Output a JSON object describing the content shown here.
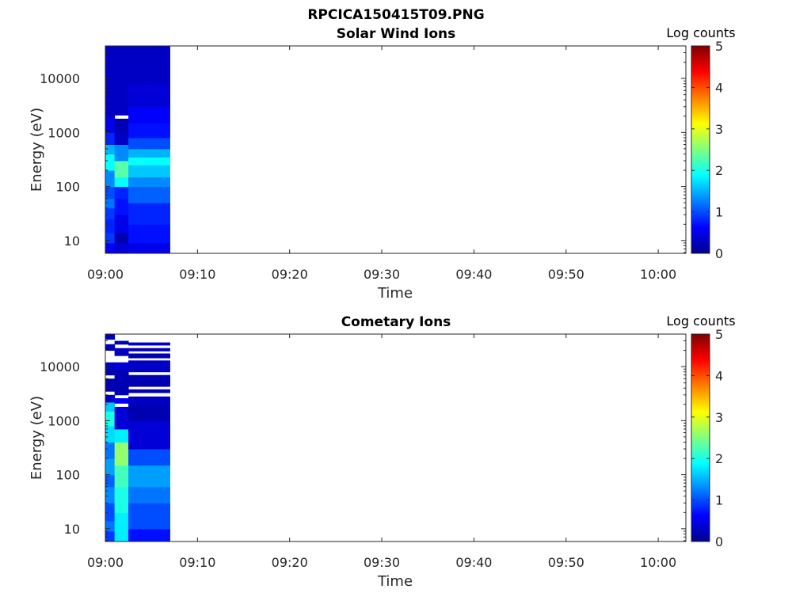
{
  "figure_title": "RPCICA150415T09.PNG",
  "colors": {
    "colormap": [
      "#00008f",
      "#0000ff",
      "#0080ff",
      "#00ffff",
      "#80ff80",
      "#ffff00",
      "#ff8000",
      "#ff0000",
      "#800000"
    ]
  },
  "chart_data": [
    {
      "type": "heatmap",
      "title": "Solar Wind Ions",
      "xlabel": "Time",
      "ylabel": "Energy (eV)",
      "x_ticks": [
        "09:00",
        "09:10",
        "09:20",
        "09:30",
        "09:40",
        "09:50",
        "10:00"
      ],
      "y_ticks": [
        "10",
        "100",
        "1000",
        "10000"
      ],
      "y_scale": "log",
      "y_range_eV": [
        5.8,
        40000
      ],
      "x_range": [
        "09:00",
        "10:03"
      ],
      "colorbar": {
        "label": "Log counts",
        "ticks": [
          "0",
          "1",
          "2",
          "3",
          "4",
          "5"
        ],
        "range": [
          0,
          5
        ]
      },
      "columns": [
        {
          "t_start": "09:00",
          "t_end": "09:01",
          "bands": [
            [
              5.8,
              9,
              0.6
            ],
            [
              9,
              14,
              0.9
            ],
            [
              14,
              25,
              0.8
            ],
            [
              25,
              40,
              0.9
            ],
            [
              40,
              60,
              1.2
            ],
            [
              60,
              100,
              1.0
            ],
            [
              100,
              200,
              1.3
            ],
            [
              200,
              400,
              1.9
            ],
            [
              400,
              600,
              1.5
            ],
            [
              600,
              1000,
              0.8
            ],
            [
              1000,
              2000,
              0.5
            ],
            [
              2000,
              40000,
              0.3
            ]
          ]
        },
        {
          "t_start": "09:01",
          "t_end": "09:02.5",
          "bands": [
            [
              5.8,
              9,
              0.4
            ],
            [
              9,
              14,
              0.2
            ],
            [
              14,
              30,
              0.5
            ],
            [
              30,
              60,
              0.7
            ],
            [
              60,
              100,
              0.8
            ],
            [
              100,
              150,
              1.9
            ],
            [
              150,
              300,
              2.3
            ],
            [
              300,
              600,
              1.3
            ],
            [
              600,
              1000,
              0.3
            ],
            [
              1000,
              1800,
              0.2
            ],
            [
              1800,
              2100,
              null
            ],
            [
              2100,
              40000,
              0.3
            ]
          ]
        },
        {
          "t_start": "09:02.5",
          "t_end": "09:07",
          "bands": [
            [
              5.8,
              9,
              0.5
            ],
            [
              9,
              20,
              0.7
            ],
            [
              20,
              50,
              0.8
            ],
            [
              50,
              100,
              1.1
            ],
            [
              100,
              150,
              1.3
            ],
            [
              150,
              250,
              1.6
            ],
            [
              250,
              350,
              1.9
            ],
            [
              350,
              500,
              1.5
            ],
            [
              500,
              800,
              1.0
            ],
            [
              800,
              1500,
              0.7
            ],
            [
              1500,
              3000,
              0.6
            ],
            [
              3000,
              8000,
              0.4
            ],
            [
              8000,
              40000,
              0.3
            ]
          ]
        }
      ]
    },
    {
      "type": "heatmap",
      "title": "Cometary Ions",
      "xlabel": "Time",
      "ylabel": "Energy (eV)",
      "x_ticks": [
        "09:00",
        "09:10",
        "09:20",
        "09:30",
        "09:40",
        "09:50",
        "10:00"
      ],
      "y_ticks": [
        "10",
        "100",
        "1000",
        "10000"
      ],
      "y_scale": "log",
      "y_range_eV": [
        5.8,
        40000
      ],
      "x_range": [
        "09:00",
        "10:03"
      ],
      "colorbar": {
        "label": "Log counts",
        "ticks": [
          "0",
          "1",
          "2",
          "3",
          "4",
          "5"
        ],
        "range": [
          0,
          5
        ]
      },
      "columns": [
        {
          "t_start": "09:00",
          "t_end": "09:01",
          "bands": [
            [
              5.8,
              9,
              0.9
            ],
            [
              9,
              14,
              1.2
            ],
            [
              14,
              30,
              1.0
            ],
            [
              30,
              60,
              1.3
            ],
            [
              60,
              100,
              1.1
            ],
            [
              100,
              200,
              1.4
            ],
            [
              200,
              400,
              1.2
            ],
            [
              400,
              800,
              1.7
            ],
            [
              800,
              1500,
              2.0
            ],
            [
              1500,
              2200,
              1.6
            ],
            [
              2200,
              3000,
              0.3
            ],
            [
              3000,
              3500,
              null
            ],
            [
              3500,
              6000,
              0.2
            ],
            [
              6000,
              7000,
              null
            ],
            [
              7000,
              9000,
              0.2
            ],
            [
              9000,
              12000,
              0.3
            ],
            [
              12000,
              20000,
              null
            ],
            [
              20000,
              26000,
              0.2
            ],
            [
              26000,
              32000,
              null
            ],
            [
              32000,
              40000,
              0.2
            ]
          ]
        },
        {
          "t_start": "09:01",
          "t_end": "09:02.5",
          "bands": [
            [
              5.8,
              20,
              1.8
            ],
            [
              20,
              60,
              2.0
            ],
            [
              60,
              150,
              2.2
            ],
            [
              150,
              400,
              2.6
            ],
            [
              400,
              700,
              1.8
            ],
            [
              700,
              1800,
              0.4
            ],
            [
              1800,
              2100,
              null
            ],
            [
              2100,
              2600,
              0.6
            ],
            [
              2600,
              3000,
              null
            ],
            [
              3000,
              9000,
              0.2
            ],
            [
              9000,
              12000,
              0.4
            ],
            [
              12000,
              16000,
              null
            ],
            [
              16000,
              22000,
              0.3
            ],
            [
              22000,
              26000,
              null
            ],
            [
              26000,
              30000,
              0.2
            ],
            [
              30000,
              40000,
              null
            ]
          ]
        },
        {
          "t_start": "09:02.5",
          "t_end": "09:07",
          "bands": [
            [
              5.8,
              10,
              0.7
            ],
            [
              10,
              30,
              1.0
            ],
            [
              30,
              60,
              1.2
            ],
            [
              60,
              150,
              1.4
            ],
            [
              150,
              300,
              1.0
            ],
            [
              300,
              1000,
              0.4
            ],
            [
              1000,
              2000,
              0.2
            ],
            [
              2000,
              2800,
              0.3
            ],
            [
              2800,
              3300,
              null
            ],
            [
              3300,
              3800,
              0.2
            ],
            [
              3800,
              4300,
              null
            ],
            [
              4300,
              7000,
              0.2
            ],
            [
              7000,
              8000,
              null
            ],
            [
              8000,
              13000,
              0.3
            ],
            [
              13000,
              14500,
              null
            ],
            [
              14500,
              17500,
              0.2
            ],
            [
              17500,
              19500,
              null
            ],
            [
              19500,
              22000,
              0.2
            ],
            [
              22000,
              25000,
              null
            ],
            [
              25000,
              28000,
              0.3
            ],
            [
              28000,
              40000,
              null
            ]
          ]
        }
      ]
    }
  ]
}
